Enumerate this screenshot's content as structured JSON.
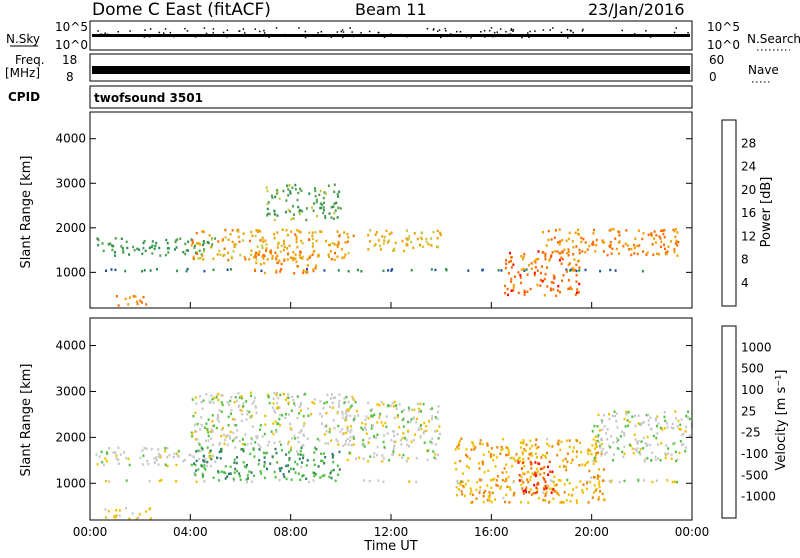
{
  "header": {
    "title": "Dome C East (fitACF)",
    "beam": "Beam 11",
    "date": "23/Jan/2016"
  },
  "noise_panel": {
    "left_label": "N.Sky",
    "right_label": "N.Search",
    "left_ticks": [
      "10^5",
      "10^0"
    ],
    "right_ticks": [
      "10^5",
      "10^0"
    ]
  },
  "freq_panel": {
    "left_label_1": "Freq.",
    "left_label_2": "[MHz]",
    "right_label": "Nave",
    "left_ticks": [
      "18",
      "8"
    ],
    "right_ticks": [
      "60",
      "0"
    ]
  },
  "cpid_panel": {
    "label": "CPID",
    "program": "twofsound 3501"
  },
  "power_panel": {
    "ylabel": "Slant Range [km]",
    "yticks": [
      "4000",
      "3000",
      "2000",
      "1000"
    ],
    "colorbar_label": "Power [dB]",
    "colorbar_ticks": [
      "28",
      "24",
      "20",
      "16",
      "12",
      "8",
      "4"
    ],
    "colors": [
      "#0000ff",
      "#1f4fa0",
      "#2f8f4f",
      "#4fa04f",
      "#c8c83c",
      "#f0a000",
      "#ff6a00",
      "#ff0000"
    ]
  },
  "velocity_panel": {
    "ylabel": "Slant Range [km]",
    "yticks": [
      "4000",
      "3000",
      "2000",
      "1000"
    ],
    "colorbar_label": "Velocity [m s⁻¹]",
    "colorbar_ticks": [
      "1000",
      "500",
      "100",
      "25",
      "-25",
      "-100",
      "-500",
      "-1000"
    ],
    "colors": [
      "#1010c0",
      "#2050a0",
      "#308060",
      "#50c040",
      "#c8c8c8",
      "#f0c000",
      "#f08000",
      "#ff4000",
      "#ff0000"
    ]
  },
  "xaxis": {
    "label": "Time UT",
    "ticks": [
      "00:00",
      "04:00",
      "08:00",
      "12:00",
      "16:00",
      "20:00",
      "00:00"
    ]
  },
  "chart_data": {
    "type": "heatmap",
    "title": "Dome C East (fitACF)",
    "subtitle": "Beam 11",
    "date": "23/Jan/2016",
    "xlabel": "Time UT",
    "ylabel": "Slant Range [km]",
    "x_range_hours": [
      0,
      24
    ],
    "y_range_km": [
      200,
      4600
    ],
    "panels": [
      {
        "name": "Power [dB]",
        "colorbar_ticks": [
          4,
          8,
          12,
          16,
          20,
          24,
          28
        ],
        "range": [
          0,
          32
        ],
        "regions": [
          {
            "t0": 0.2,
            "t1": 24,
            "r0": 1050,
            "r1": 1100,
            "value": 8
          },
          {
            "t0": 0.2,
            "t1": 5,
            "r0": 1400,
            "r1": 1800,
            "value": 12
          },
          {
            "t0": 1.0,
            "t1": 2.3,
            "r0": 250,
            "r1": 500,
            "value": 24
          },
          {
            "t0": 4.0,
            "t1": 10.5,
            "r0": 1300,
            "r1": 2000,
            "value": 22
          },
          {
            "t0": 6.5,
            "t1": 9.0,
            "r0": 1000,
            "r1": 1500,
            "value": 24
          },
          {
            "t0": 7.0,
            "t1": 10.0,
            "r0": 2200,
            "r1": 3000,
            "value": 14
          },
          {
            "t0": 11.0,
            "t1": 14.0,
            "r0": 1500,
            "r1": 2000,
            "value": 20
          },
          {
            "t0": 16.5,
            "t1": 19.5,
            "r0": 500,
            "r1": 1500,
            "value": 26
          },
          {
            "t0": 18.0,
            "t1": 23.5,
            "r0": 1400,
            "r1": 2000,
            "value": 24
          }
        ]
      },
      {
        "name": "Velocity [m s⁻¹]",
        "colorbar_ticks": [
          -1000,
          -500,
          -100,
          -25,
          25,
          100,
          500,
          1000
        ],
        "range": [
          -1000,
          1000
        ],
        "regions": [
          {
            "t0": 0.2,
            "t1": 24,
            "r0": 1050,
            "r1": 1100,
            "value": 0
          },
          {
            "t0": 0.2,
            "t1": 5,
            "r0": 1400,
            "r1": 1800,
            "value": 0
          },
          {
            "t0": 0.5,
            "t1": 2.5,
            "r0": 250,
            "r1": 500,
            "value": 150
          },
          {
            "t0": 4.0,
            "t1": 10.5,
            "r0": 1800,
            "r1": 3000,
            "value": 0
          },
          {
            "t0": 4.0,
            "t1": 10.0,
            "r0": 1100,
            "r1": 1800,
            "value": -300
          },
          {
            "t0": 10.0,
            "t1": 14.0,
            "r0": 1500,
            "r1": 2800,
            "value": 0
          },
          {
            "t0": 14.5,
            "t1": 20.5,
            "r0": 600,
            "r1": 2000,
            "value": 300
          },
          {
            "t0": 17.0,
            "t1": 18.5,
            "r0": 800,
            "r1": 1500,
            "value": 700
          },
          {
            "t0": 20.0,
            "t1": 24.0,
            "r0": 1500,
            "r1": 2600,
            "value": 0
          }
        ]
      }
    ]
  }
}
